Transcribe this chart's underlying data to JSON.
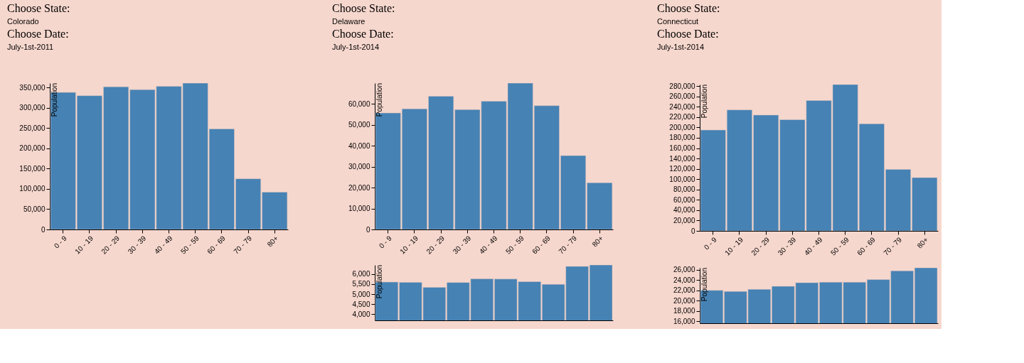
{
  "chart_data": [
    {
      "type": "bar",
      "annotations": [
        "Choose State:",
        "Colorado",
        "Choose Date:",
        "July-1st-2011"
      ],
      "ylabel": "Population",
      "categories": [
        "0 - 9",
        "10 - 19",
        "20 - 29",
        "30 - 39",
        "40 - 49",
        "50 - 59",
        "60 - 69",
        "70 - 79",
        "80+"
      ],
      "values": [
        338000,
        330000,
        352000,
        345000,
        353000,
        361000,
        248000,
        125000,
        92000
      ],
      "color": "#4682b4",
      "ylim": [
        0,
        361000
      ],
      "yticks": [
        0,
        {
          "value": 50000,
          "label": "50,000"
        },
        {
          "value": 100000,
          "label": "100,000"
        },
        {
          "value": 150000,
          "label": "150,000"
        },
        {
          "value": 200000,
          "label": "200,000"
        },
        {
          "value": 250000,
          "label": "250,000"
        },
        {
          "value": 300000,
          "label": "300,000"
        },
        {
          "value": 350000,
          "label": "350,000"
        }
      ],
      "grid": false
    },
    {
      "type": "bar",
      "annotations": [
        "Choose State:",
        "Delaware",
        "Choose Date:",
        "July-1st-2014"
      ],
      "ylabel": "Population",
      "categories": [
        "0 - 9",
        "10 - 19",
        "20 - 29",
        "30 - 39",
        "40 - 49",
        "50 - 59",
        "60 - 69",
        "70 - 79",
        "80+"
      ],
      "values": [
        55700,
        57700,
        63700,
        57300,
        61300,
        70000,
        59200,
        35300,
        22300
      ],
      "color": "#4682b4",
      "ylim": [
        0,
        70000
      ],
      "yticks": [
        0,
        {
          "value": 10000,
          "label": "10,000"
        },
        {
          "value": 20000,
          "label": "20,000"
        },
        {
          "value": 30000,
          "label": "30,000"
        },
        {
          "value": 40000,
          "label": "40,000"
        },
        {
          "value": 50000,
          "label": "50,000"
        },
        {
          "value": 60000,
          "label": "60,000"
        }
      ],
      "grid": false
    },
    {
      "type": "bar",
      "ylabel": "Population",
      "categories": [
        null,
        null,
        null,
        null,
        null,
        null,
        null,
        null,
        null,
        null
      ],
      "values": [
        5600,
        5590,
        5340,
        5580,
        5760,
        5750,
        5620,
        5490,
        6380,
        6450
      ],
      "color": "#4682b4",
      "ylim": [
        3700,
        6450
      ],
      "yticks": [
        {
          "value": 4000,
          "label": "4,000"
        },
        {
          "value": 4500,
          "label": "4,500"
        },
        {
          "value": 5000,
          "label": "5,000"
        },
        {
          "value": 5500,
          "label": "5,500"
        },
        {
          "value": 6000,
          "label": "6,000"
        }
      ],
      "grid": false,
      "tick_labels": "y"
    },
    {
      "type": "bar",
      "annotations": [
        "Choose State:",
        "Connecticut",
        "Choose Date:",
        "July-1st-2014"
      ],
      "ylabel": "Population",
      "categories": [
        "0 - 9",
        "10 - 19",
        "20 - 29",
        "30 - 39",
        "40 - 49",
        "50 - 59",
        "60 - 69",
        "70 - 79",
        "80+"
      ],
      "values": [
        195000,
        234000,
        224000,
        215000,
        252000,
        283000,
        207000,
        119000,
        103000
      ],
      "color": "#4682b4",
      "ylim": [
        0,
        283000
      ],
      "yticks": [
        0,
        {
          "value": 20000,
          "label": "20,000"
        },
        {
          "value": 40000,
          "label": "40,000"
        },
        {
          "value": 60000,
          "label": "60,000"
        },
        {
          "value": 80000,
          "label": "80,000"
        },
        {
          "value": 100000,
          "label": "100,000"
        },
        {
          "value": 120000,
          "label": "120,000"
        },
        {
          "value": 140000,
          "label": "140,000"
        },
        {
          "value": 160000,
          "label": "160,000"
        },
        {
          "value": 180000,
          "label": "180,000"
        },
        {
          "value": 200000,
          "label": "200,000"
        },
        {
          "value": 220000,
          "label": "220,000"
        },
        {
          "value": 240000,
          "label": "240,000"
        },
        {
          "value": 260000,
          "label": "260,000"
        },
        {
          "value": 280000,
          "label": "280,000"
        }
      ],
      "grid": false
    },
    {
      "type": "bar",
      "ylabel": "Population",
      "categories": [
        null,
        null,
        null,
        null,
        null,
        null,
        null,
        null,
        null,
        null
      ],
      "values": [
        22000,
        21800,
        22200,
        22800,
        23500,
        23600,
        23600,
        24100,
        25800,
        26400
      ],
      "color": "#4682b4",
      "ylim": [
        15600,
        26400
      ],
      "yticks": [
        {
          "value": 16000,
          "label": "16,000"
        },
        {
          "value": 18000,
          "label": "18,000"
        },
        {
          "value": 20000,
          "label": "20,000"
        },
        {
          "value": 22000,
          "label": "22,000"
        },
        {
          "value": 24000,
          "label": "24,000"
        },
        {
          "value": 26000,
          "label": "26,000"
        }
      ],
      "grid": false,
      "tick_labels": "y"
    }
  ]
}
